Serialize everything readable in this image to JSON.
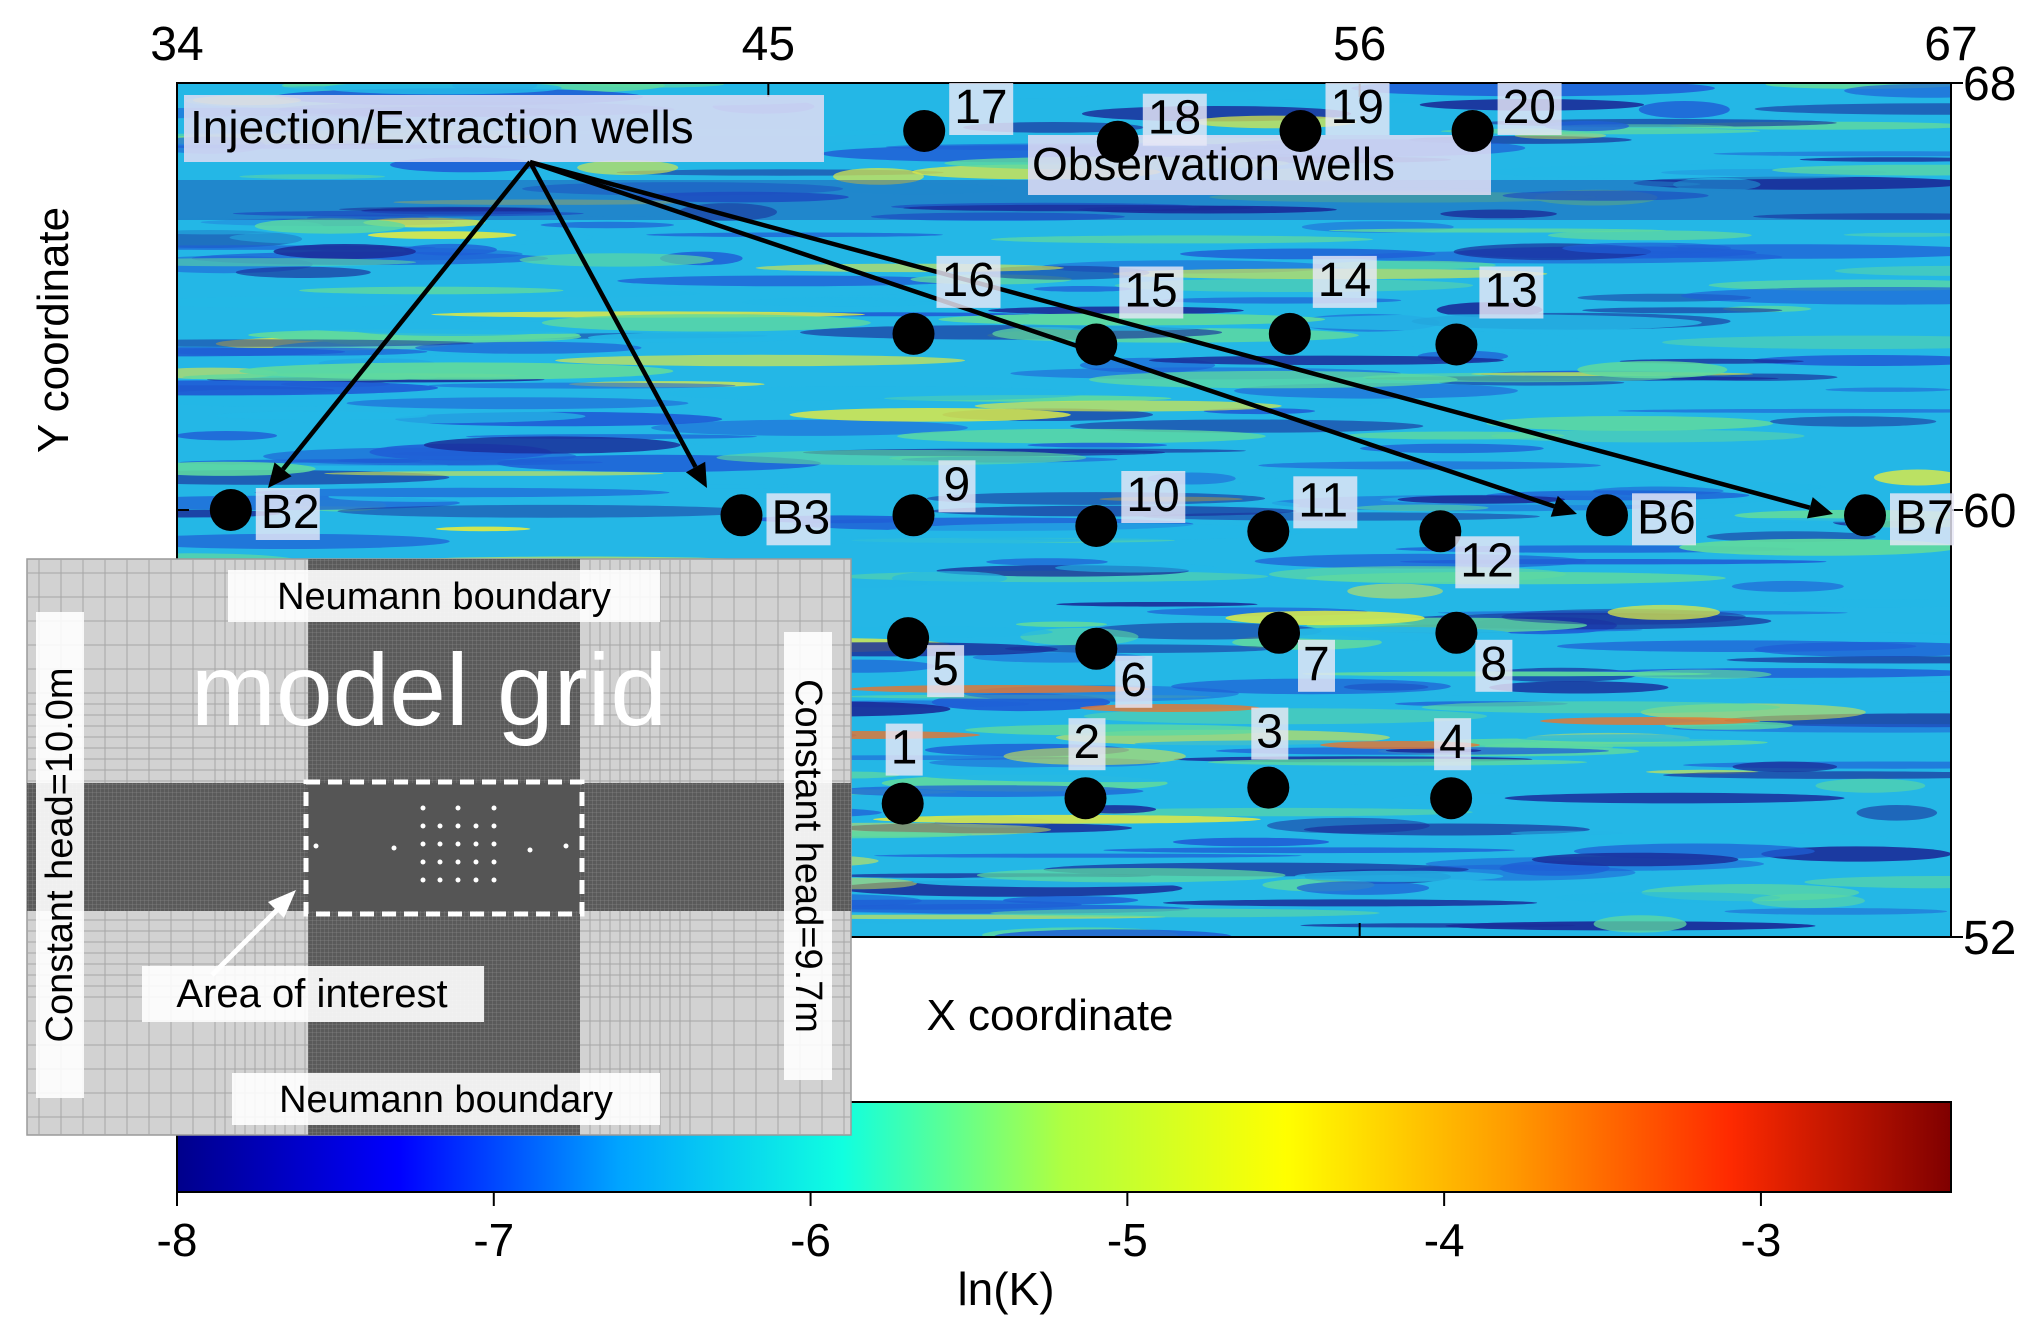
{
  "x_axis": {
    "label": "X coordinate",
    "ticks": [
      "34",
      "45",
      "56",
      "67"
    ]
  },
  "y_axis": {
    "label": "Y coordinate",
    "ticks": [
      "68",
      "60",
      "52"
    ]
  },
  "annotations": {
    "injection": "Injection/Extraction wells",
    "observation": "Observation wells"
  },
  "injection_wells": [
    {
      "id": "B2",
      "x": 35.0,
      "y": 60.0
    },
    {
      "id": "B3",
      "x": 44.5,
      "y": 59.9
    },
    {
      "id": "B6",
      "x": 60.6,
      "y": 59.9
    },
    {
      "id": "B7",
      "x": 65.4,
      "y": 59.9
    }
  ],
  "observation_wells": [
    {
      "id": "1",
      "x": 47.5,
      "y": 54.5
    },
    {
      "id": "2",
      "x": 50.9,
      "y": 54.6
    },
    {
      "id": "3",
      "x": 54.3,
      "y": 54.8
    },
    {
      "id": "4",
      "x": 57.7,
      "y": 54.6
    },
    {
      "id": "5",
      "x": 47.6,
      "y": 57.6
    },
    {
      "id": "6",
      "x": 51.1,
      "y": 57.4
    },
    {
      "id": "7",
      "x": 54.5,
      "y": 57.7
    },
    {
      "id": "8",
      "x": 57.8,
      "y": 57.7
    },
    {
      "id": "9",
      "x": 47.7,
      "y": 59.9
    },
    {
      "id": "10",
      "x": 51.1,
      "y": 59.7
    },
    {
      "id": "11",
      "x": 54.3,
      "y": 59.6
    },
    {
      "id": "12",
      "x": 57.5,
      "y": 59.6
    },
    {
      "id": "13",
      "x": 57.8,
      "y": 63.1
    },
    {
      "id": "14",
      "x": 54.7,
      "y": 63.3
    },
    {
      "id": "15",
      "x": 51.1,
      "y": 63.1
    },
    {
      "id": "16",
      "x": 47.7,
      "y": 63.3
    },
    {
      "id": "17",
      "x": 47.9,
      "y": 67.1
    },
    {
      "id": "18",
      "x": 51.5,
      "y": 66.9
    },
    {
      "id": "19",
      "x": 54.9,
      "y": 67.1
    },
    {
      "id": "20",
      "x": 58.1,
      "y": 67.1
    }
  ],
  "colorbar": {
    "label": "ln(K)",
    "ticks": [
      "-8",
      "-7",
      "-6",
      "-5",
      "-4",
      "-3"
    ],
    "range": [
      -8,
      -2.4
    ],
    "stops": [
      "#00008b",
      "#0000ff",
      "#00a5ff",
      "#10ffe0",
      "#b0ff40",
      "#ffff00",
      "#ff9c00",
      "#ff2a00",
      "#7f0000"
    ]
  },
  "inset": {
    "title": "model grid",
    "top_boundary": "Neumann boundary",
    "bottom_boundary": "Neumann boundary",
    "left_boundary": "Constant head=10.0m",
    "right_boundary": "Constant head=9.7m",
    "area_label": "Area of interest"
  },
  "field_colors": {
    "deep": "#1a2d9a",
    "low": "#1f5fd6",
    "mid": "#24b7e6",
    "high": "#5ed9a0",
    "peak": "#d9e84a",
    "hot": "#e8742e"
  }
}
